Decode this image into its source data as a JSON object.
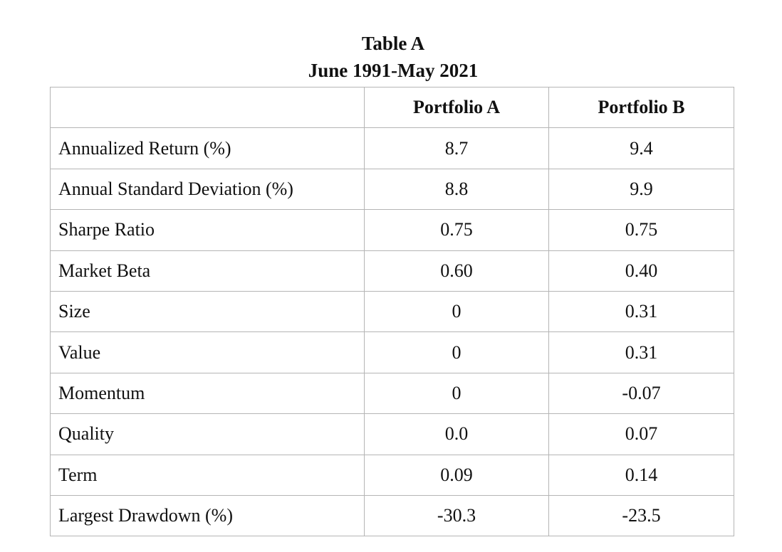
{
  "header": {
    "title": "Table A",
    "subtitle": "June 1991-May 2021"
  },
  "table": {
    "columns": [
      "",
      "Portfolio A",
      "Portfolio B"
    ],
    "rows": [
      [
        "Annualized Return (%)",
        "8.7",
        "9.4"
      ],
      [
        "Annual Standard Deviation (%)",
        "8.8",
        "9.9"
      ],
      [
        "Sharpe Ratio",
        "0.75",
        "0.75"
      ],
      [
        "Market Beta",
        "0.60",
        "0.40"
      ],
      [
        "Size",
        "0",
        "0.31"
      ],
      [
        "Value",
        "0",
        "0.31"
      ],
      [
        "Momentum",
        "0",
        "-0.07"
      ],
      [
        "Quality",
        "0.0",
        "0.07"
      ],
      [
        "Term",
        "0.09",
        "0.14"
      ],
      [
        "Largest Drawdown (%)",
        "-30.3",
        "-23.5"
      ]
    ]
  }
}
